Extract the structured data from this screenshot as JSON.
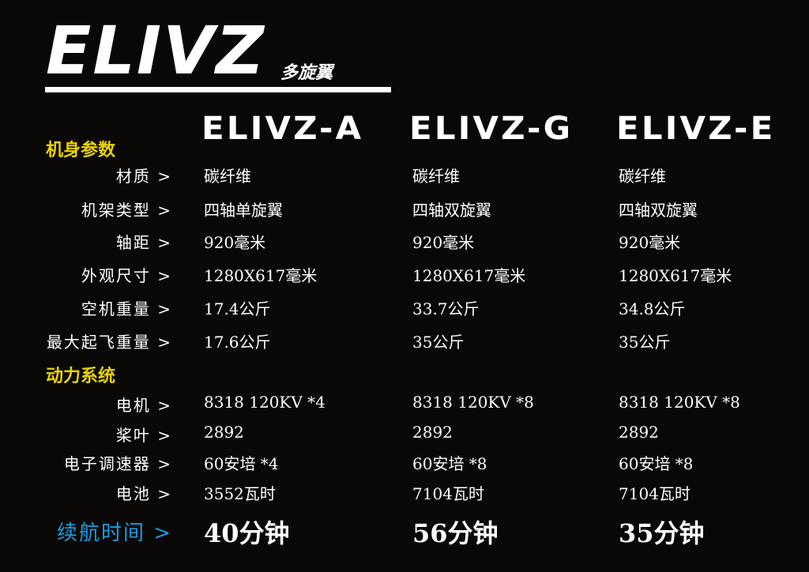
{
  "brand": {
    "logo": "ELIVZ",
    "subtitle": "多旋翼"
  },
  "models": [
    "ELIVZ-A",
    "ELIVZ-G",
    "ELIVZ-E"
  ],
  "sections": {
    "body": "机身参数",
    "power": "动力系统"
  },
  "rows": [
    {
      "label": "材质 >",
      "values": [
        "碳纤维",
        "碳纤维",
        "碳纤维"
      ]
    },
    {
      "label": "机架类型 >",
      "values": [
        "四轴单旋翼",
        "四轴双旋翼",
        "四轴双旋翼"
      ]
    },
    {
      "label": "轴距 >",
      "values": [
        "920毫米",
        "920毫米",
        "920毫米"
      ]
    },
    {
      "label": "外观尺寸 >",
      "values": [
        "1280X617毫米",
        "1280X617毫米",
        "1280X617毫米"
      ]
    },
    {
      "label": "空机重量 >",
      "values": [
        "17.4公斤",
        "33.7公斤",
        "34.8公斤"
      ]
    },
    {
      "label": "最大起飞重量 >",
      "values": [
        "17.6公斤",
        "35公斤",
        "35公斤"
      ]
    },
    {
      "label": "电机 >",
      "values": [
        "8318 120KV *4",
        "8318 120KV *8",
        "8318 120KV *8"
      ]
    },
    {
      "label": "桨叶 >",
      "values": [
        "2892",
        "2892",
        "2892"
      ]
    },
    {
      "label": "电子调速器 >",
      "values": [
        "60安培 *4",
        "60安培 *8",
        "60安培 *8"
      ]
    },
    {
      "label": "电池 >",
      "values": [
        "3552瓦时",
        "7104瓦时",
        "7104瓦时"
      ]
    },
    {
      "label": "续航时间 >",
      "values": [
        "40分钟",
        "56分钟",
        "35分钟"
      ]
    }
  ],
  "colors": {
    "background": "#0a0707",
    "section": "#e8d400",
    "highlight": "#1a9ee0"
  }
}
